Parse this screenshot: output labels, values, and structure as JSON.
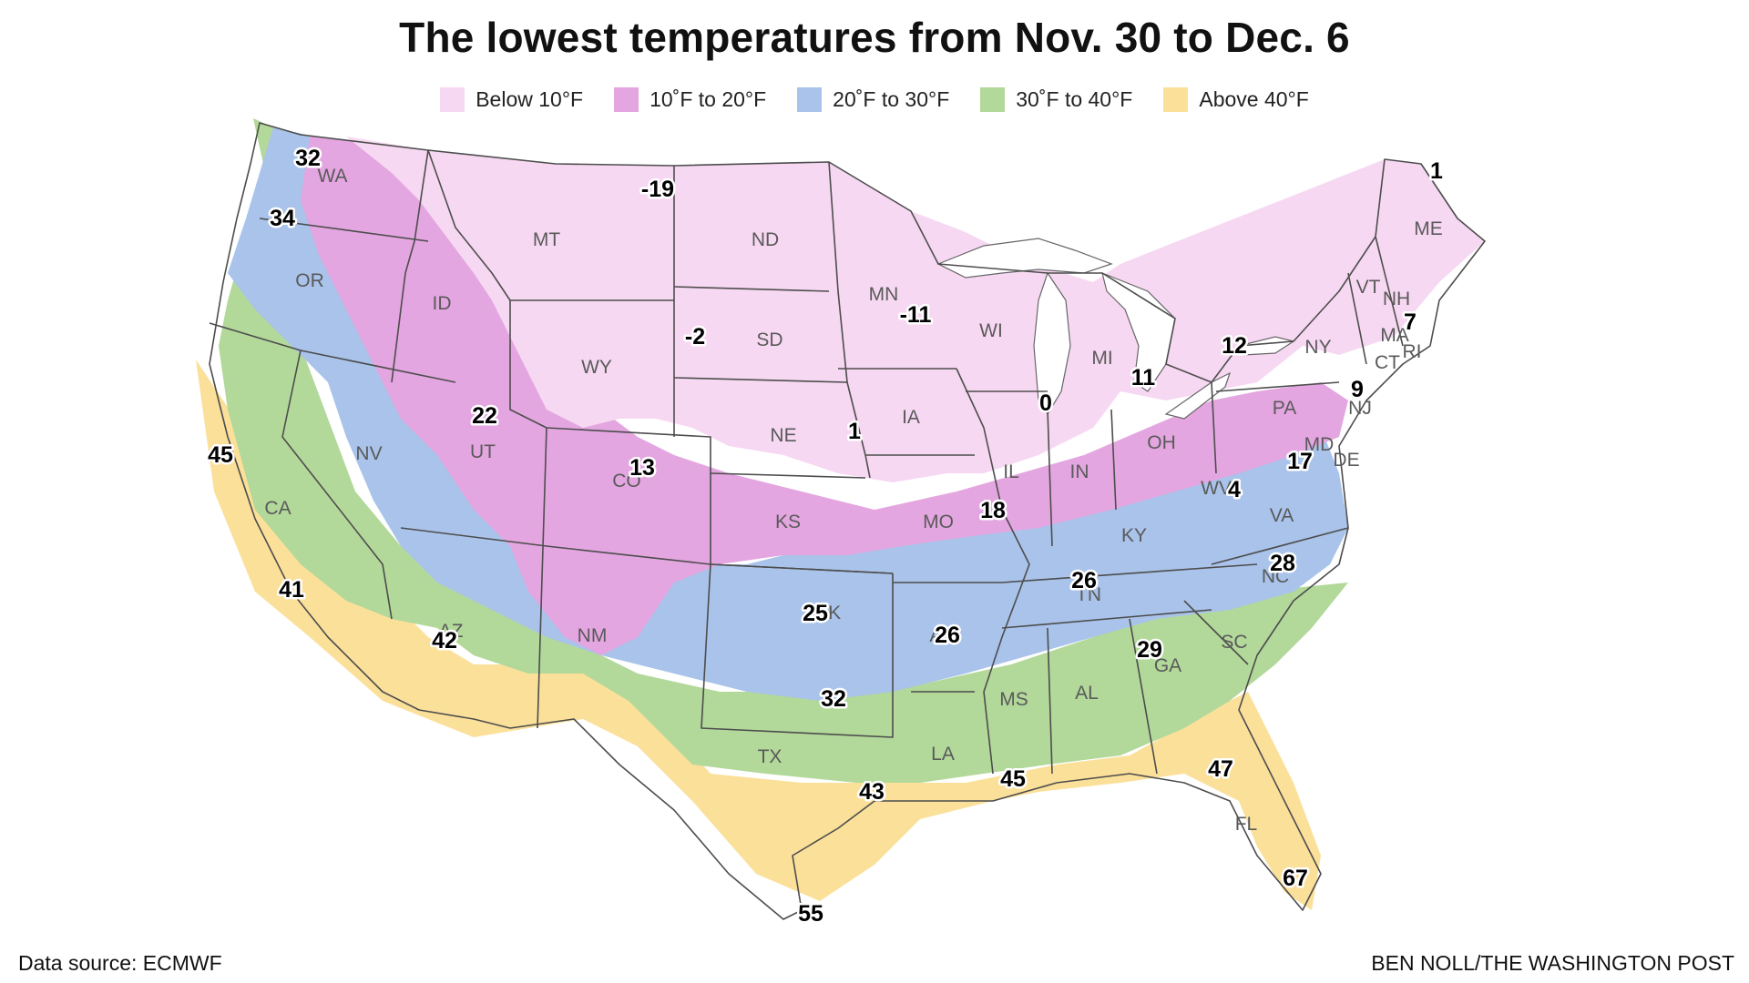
{
  "title": "The lowest temperatures from Nov. 30 to Dec. 6",
  "legend": [
    {
      "label": "Below 10°F",
      "color": "#f7d8f2"
    },
    {
      "label": "10˚F to 20°F",
      "color": "#e4a6e0"
    },
    {
      "label": "20˚F to 30°F",
      "color": "#a9c3ea"
    },
    {
      "label": "30˚F to 40°F",
      "color": "#b2d89a"
    },
    {
      "label": "Above 40°F",
      "color": "#fbe09a"
    }
  ],
  "state_labels": [
    "WA",
    "OR",
    "CA",
    "ID",
    "NV",
    "MT",
    "WY",
    "UT",
    "AZ",
    "CO",
    "NM",
    "ND",
    "SD",
    "NE",
    "KS",
    "OK",
    "TX",
    "MN",
    "IA",
    "MO",
    "AR",
    "LA",
    "WI",
    "IL",
    "MI",
    "IN",
    "KY",
    "TN",
    "MS",
    "AL",
    "GA",
    "FL",
    "SC",
    "NC",
    "VA",
    "WV",
    "OH",
    "PA",
    "NY",
    "ME",
    "VT",
    "NH",
    "MA",
    "CT",
    "RI",
    "NJ",
    "DE",
    "MD"
  ],
  "temperatures": [
    "32",
    "34",
    "45",
    "41",
    "42",
    "22",
    "13",
    "-19",
    "-2",
    "1",
    "-11",
    "0",
    "18",
    "25",
    "26",
    "32",
    "43",
    "55",
    "45",
    "26",
    "29",
    "47",
    "67",
    "28",
    "4",
    "17",
    "9",
    "7",
    "1",
    "12",
    "11"
  ],
  "source": "Data source: ECMWF",
  "credit": "BEN NOLL/THE WASHINGTON POST"
}
